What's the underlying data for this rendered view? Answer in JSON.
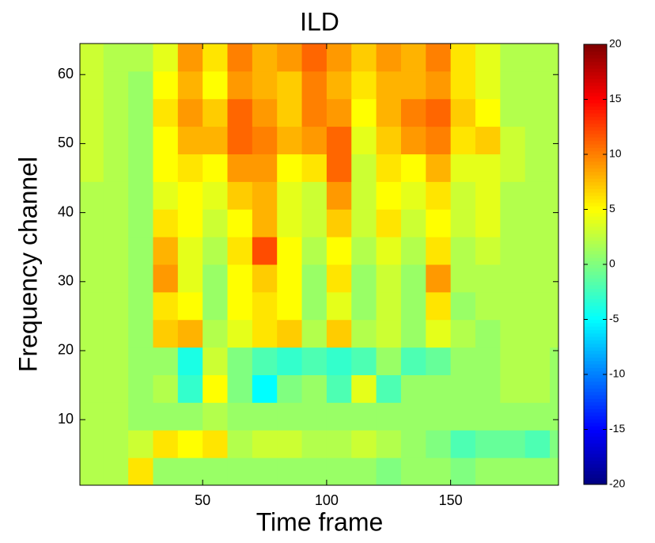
{
  "chart_data": {
    "type": "heatmap",
    "title": "ILD",
    "xlabel": "Time frame",
    "ylabel": "Frequency channel",
    "colormap": "jet",
    "x": [
      5,
      15,
      25,
      35,
      45,
      55,
      65,
      75,
      85,
      95,
      105,
      115,
      125,
      135,
      145,
      155,
      165,
      175,
      185,
      195
    ],
    "y": [
      2.5,
      6.5,
      10.5,
      14.5,
      18.5,
      22.5,
      26.5,
      30.5,
      34.5,
      38.5,
      42.5,
      46.5,
      50.5,
      54.5,
      58.5,
      62.5
    ],
    "values": [
      [
        2,
        2,
        6,
        1,
        1,
        1,
        1,
        1,
        1,
        1,
        1,
        1,
        0,
        1,
        1,
        0,
        1,
        1,
        1,
        1
      ],
      [
        2,
        2,
        3,
        6,
        5,
        6,
        2,
        3,
        3,
        2,
        2,
        3,
        2,
        1,
        0,
        -2,
        -1,
        -1,
        -2,
        0
      ],
      [
        2,
        2,
        1,
        1,
        1,
        2,
        1,
        1,
        1,
        1,
        1,
        1,
        1,
        1,
        1,
        1,
        1,
        1,
        1,
        1
      ],
      [
        2,
        2,
        1,
        2,
        -3,
        5,
        0,
        -5,
        0,
        1,
        -2,
        4,
        -2,
        1,
        1,
        1,
        1,
        2,
        2,
        1
      ],
      [
        2,
        2,
        1,
        1,
        -4,
        3,
        0,
        -2,
        -3,
        -2,
        -3,
        -2,
        1,
        -2,
        -1,
        1,
        1,
        2,
        2,
        1
      ],
      [
        2,
        2,
        1,
        7,
        8,
        2,
        4,
        6,
        7,
        2,
        7,
        2,
        3,
        1,
        4,
        2,
        1,
        2,
        2,
        2
      ],
      [
        2,
        2,
        1,
        6,
        5,
        1,
        5,
        6,
        5,
        1,
        4,
        1,
        3,
        1,
        6,
        1,
        2,
        2,
        2,
        2
      ],
      [
        2,
        2,
        1,
        9,
        4,
        1,
        5,
        7,
        5,
        1,
        6,
        1,
        3,
        1,
        9,
        2,
        2,
        2,
        2,
        2
      ],
      [
        2,
        2,
        1,
        8,
        4,
        2,
        6,
        12,
        5,
        2,
        5,
        2,
        4,
        2,
        6,
        2,
        3,
        2,
        2,
        2
      ],
      [
        2,
        2,
        1,
        6,
        5,
        3,
        5,
        8,
        4,
        3,
        7,
        3,
        6,
        3,
        5,
        3,
        4,
        2,
        2,
        2
      ],
      [
        2,
        2,
        1,
        4,
        5,
        4,
        7,
        8,
        4,
        3,
        9,
        3,
        5,
        4,
        6,
        3,
        4,
        2,
        2,
        2
      ],
      [
        3,
        2,
        1,
        5,
        6,
        5,
        9,
        9,
        5,
        6,
        11,
        3,
        6,
        5,
        8,
        4,
        4,
        3,
        2,
        2
      ],
      [
        3,
        2,
        1,
        5,
        8,
        8,
        11,
        10,
        8,
        9,
        11,
        4,
        7,
        9,
        10,
        6,
        7,
        3,
        2,
        2
      ],
      [
        3,
        2,
        1,
        6,
        9,
        7,
        11,
        9,
        7,
        10,
        9,
        5,
        8,
        10,
        11,
        7,
        5,
        2,
        2,
        2
      ],
      [
        3,
        2,
        1,
        5,
        8,
        5,
        9,
        8,
        7,
        10,
        8,
        6,
        8,
        8,
        9,
        6,
        4,
        2,
        2,
        2
      ],
      [
        3,
        2,
        2,
        4,
        9,
        6,
        10,
        8,
        9,
        11,
        9,
        7,
        9,
        8,
        10,
        6,
        4,
        2,
        2,
        2
      ]
    ],
    "xlim": [
      0.5,
      193.5
    ],
    "ylim": [
      0.5,
      64.5
    ],
    "xticks": [
      50,
      100,
      150
    ],
    "yticks": [
      10,
      20,
      30,
      40,
      50,
      60
    ],
    "clim": [
      -20,
      20
    ],
    "cticks": [
      -20,
      -15,
      -10,
      -5,
      0,
      5,
      10,
      15,
      20
    ]
  }
}
